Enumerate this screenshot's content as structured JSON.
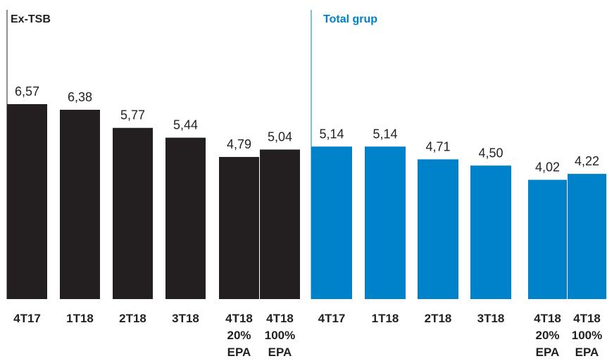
{
  "chart_data": [
    {
      "type": "bar",
      "title": "Ex-TSB",
      "color": "#231f20",
      "categories": [
        [
          "4T17"
        ],
        [
          "1T18"
        ],
        [
          "2T18"
        ],
        [
          "3T18"
        ],
        [
          "4T18",
          "20%",
          "EPA"
        ],
        [
          "4T18",
          "100%",
          "EPA"
        ]
      ],
      "values": [
        6.57,
        6.38,
        5.77,
        5.44,
        4.79,
        5.04
      ],
      "value_labels": [
        "6,57",
        "6,38",
        "5,77",
        "5,44",
        "4,79",
        "5,04"
      ],
      "xlabel": "",
      "ylabel": "",
      "ylim": [
        0,
        6.57
      ],
      "grid": false
    },
    {
      "type": "bar",
      "title": "Total grup",
      "color": "#0082ca",
      "categories": [
        [
          "4T17"
        ],
        [
          "1T18"
        ],
        [
          "2T18"
        ],
        [
          "3T18"
        ],
        [
          "4T18",
          "20%",
          "EPA"
        ],
        [
          "4T18",
          "100%",
          "EPA"
        ]
      ],
      "values": [
        5.14,
        5.14,
        4.71,
        4.5,
        4.02,
        4.22
      ],
      "value_labels": [
        "5,14",
        "5,14",
        "4,71",
        "4,50",
        "4,02",
        "4,22"
      ],
      "xlabel": "",
      "ylabel": "",
      "ylim": [
        0,
        6.57
      ],
      "grid": false
    }
  ]
}
